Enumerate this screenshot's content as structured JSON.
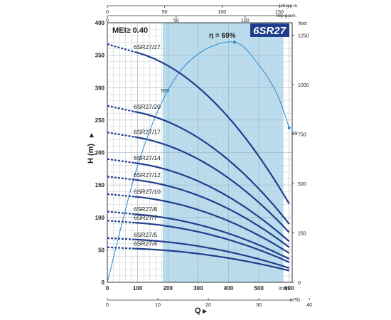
{
  "chart_data": {
    "type": "line",
    "title": "6SR27",
    "badge": "MEI≥ 0.40",
    "efficiency_label": "η = 69%",
    "xlabel": "Q",
    "ylabel": "H (m)",
    "x_unit": "l/min",
    "x2_unit": "m³/h",
    "y2_unit": "feet",
    "top_unit_us": "US g.p.m.",
    "top_unit_imp": "Imp g.p.m.",
    "xlim": [
      0,
      610
    ],
    "ylim": [
      0,
      400
    ],
    "grid": true,
    "x_ticks": [
      "0",
      "100",
      "200",
      "300",
      "400",
      "500",
      "600"
    ],
    "x_tick_values": [
      0,
      100,
      200,
      300,
      400,
      500,
      600
    ],
    "y_ticks": [
      "0",
      "50",
      "100",
      "150",
      "200",
      "250",
      "300",
      "350",
      "400"
    ],
    "y_tick_values": [
      0,
      50,
      100,
      150,
      200,
      250,
      300,
      350,
      400
    ],
    "feet_ticks": [
      "0",
      "250",
      "500",
      "750",
      "1000",
      "1250"
    ],
    "feet_tick_values": [
      0,
      250,
      500,
      750,
      1000,
      1250
    ],
    "m3h_ticks": [
      "0",
      "10",
      "20",
      "30",
      "40"
    ],
    "m3h_tick_values": [
      0,
      10,
      20,
      30,
      40
    ],
    "us_gpm_ticks": [
      "0",
      "50",
      "100",
      "150"
    ],
    "us_gpm_tick_values": [
      0,
      50,
      100,
      150
    ],
    "imp_gpm_ticks": [
      "0",
      "50",
      "100"
    ],
    "imp_gpm_tick_values": [
      0,
      50,
      100
    ],
    "recommended_range": [
      183,
      580
    ],
    "efficiency_curve": {
      "x": [
        0,
        100,
        200,
        300,
        420,
        500,
        560,
        600
      ],
      "y": [
        0,
        180,
        296,
        352,
        370,
        335,
        290,
        238
      ],
      "point_labels": [
        {
          "x": 200,
          "y": 296,
          "label": "55"
        },
        {
          "x": 420,
          "y": 370,
          "label": ""
        },
        {
          "x": 600,
          "y": 238,
          "label": "49"
        }
      ]
    },
    "series": [
      {
        "name": "6SR27/27",
        "h0": 367,
        "h90": 355,
        "h600": 121
      },
      {
        "name": "6SR27/20",
        "h0": 272,
        "h90": 263,
        "h600": 90
      },
      {
        "name": "6SR27/17",
        "h0": 231,
        "h90": 224,
        "h600": 77
      },
      {
        "name": "6SR27/14",
        "h0": 190,
        "h90": 184,
        "h600": 63
      },
      {
        "name": "6SR27/12",
        "h0": 163,
        "h90": 158,
        "h600": 54
      },
      {
        "name": "6SR27/10",
        "h0": 136,
        "h90": 132,
        "h600": 45
      },
      {
        "name": "6SR27/8",
        "h0": 109,
        "h90": 105,
        "h600": 36
      },
      {
        "name": "6SR27/7",
        "h0": 95,
        "h90": 92,
        "h600": 31
      },
      {
        "name": "6SR27/5",
        "h0": 68,
        "h90": 66,
        "h600": 22
      },
      {
        "name": "6SR27/4",
        "h0": 54,
        "h90": 52,
        "h600": 18
      }
    ],
    "curve_color": "#1f3e8c",
    "efficiency_color": "#2b8ccf",
    "range_fill": "#b9dcee",
    "badge_color": "#1f3e8c"
  }
}
